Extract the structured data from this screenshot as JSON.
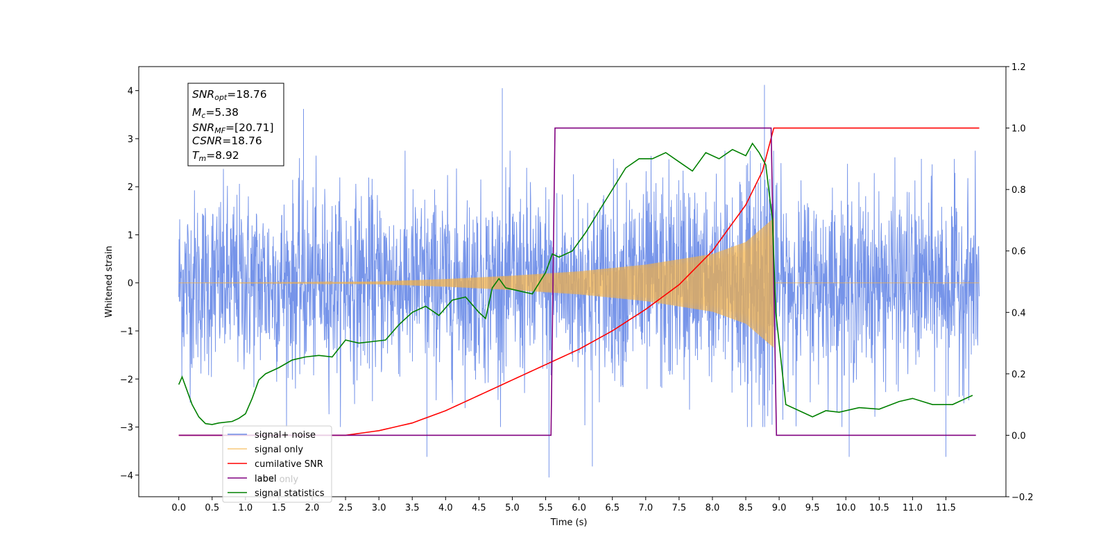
{
  "chart_data": {
    "type": "line",
    "xlabel": "Time (s)",
    "ylabel": "Whitened strain",
    "xlim": [
      -0.6,
      12.4
    ],
    "ylim_left": [
      -4.45,
      4.5
    ],
    "ylim_right": [
      -0.2,
      1.2
    ],
    "x_ticks": [
      "0.0",
      "0.5",
      "1.0",
      "1.5",
      "2.0",
      "2.5",
      "3.0",
      "3.5",
      "4.0",
      "4.5",
      "5.0",
      "5.5",
      "6.0",
      "6.5",
      "7.0",
      "7.5",
      "8.0",
      "8.5",
      "9.0",
      "9.5",
      "10.0",
      "10.5",
      "11.0",
      "11.5"
    ],
    "y_ticks_left": [
      "4",
      "3",
      "2",
      "1",
      "0",
      "−1",
      "−2",
      "−3",
      "−4"
    ],
    "y_ticks_right": [
      "1.2",
      "1.0",
      "0.8",
      "0.6",
      "0.4",
      "0.2",
      "0.0",
      "−0.2"
    ],
    "grid": false,
    "legend_position": "lower-left",
    "legend": [
      "signal+ noise",
      "signal only",
      "cumilative SNR",
      "label",
      "signal statistics"
    ],
    "legend_faint_text": "label only",
    "annotation": {
      "snr_opt_label": "SNR",
      "snr_opt_sub": "opt",
      "snr_opt_value": "=18.76",
      "mc_label": "M",
      "mc_sub": "c",
      "mc_value": "=5.38",
      "snr_mf_label": "SNR",
      "snr_mf_sub": "MF",
      "snr_mf_value": "=[20.71]",
      "csnr_label": "CSNR",
      "csnr_value": "=18.76",
      "tm_label": "T",
      "tm_sub": "m",
      "tm_value": "=8.92"
    },
    "series": [
      {
        "name": "signal+ noise",
        "axis": "left",
        "color": "#6f8ee8",
        "x_range": [
          0.0,
          12.0
        ],
        "noise_envelope": [
          -2.7,
          2.3
        ],
        "notable_peaks": [
          {
            "x": 4.85,
            "y": 4.05
          },
          {
            "x": 8.78,
            "y": 4.12
          },
          {
            "x": 1.87,
            "y": 3.62
          },
          {
            "x": 5.55,
            "y": -4.05
          },
          {
            "x": 6.2,
            "y": -3.82
          },
          {
            "x": 3.72,
            "y": -3.62
          },
          {
            "x": 11.5,
            "y": -3.62
          },
          {
            "x": 10.05,
            "y": -3.62
          }
        ]
      },
      {
        "name": "signal only",
        "axis": "left",
        "color": "#f5b041",
        "x_range": [
          0.0,
          8.92
        ],
        "envelope": [
          [
            0.0,
            0.0
          ],
          [
            2.0,
            0.01
          ],
          [
            3.0,
            0.03
          ],
          [
            4.0,
            0.08
          ],
          [
            5.0,
            0.15
          ],
          [
            6.0,
            0.24
          ],
          [
            7.0,
            0.38
          ],
          [
            8.0,
            0.6
          ],
          [
            8.5,
            0.85
          ],
          [
            8.92,
            1.35
          ]
        ]
      },
      {
        "name": "cumilative SNR",
        "axis": "right",
        "color": "#ff0000",
        "x": [
          0.0,
          2.5,
          3.0,
          3.5,
          4.0,
          4.5,
          5.0,
          5.5,
          6.0,
          6.5,
          7.0,
          7.5,
          8.0,
          8.5,
          8.75,
          8.92,
          9.0,
          12.0
        ],
        "values": [
          0.0,
          0.0,
          0.015,
          0.04,
          0.08,
          0.13,
          0.18,
          0.23,
          0.28,
          0.34,
          0.41,
          0.49,
          0.6,
          0.75,
          0.86,
          1.0,
          1.0,
          1.0
        ]
      },
      {
        "name": "label",
        "axis": "right",
        "color": "#800080",
        "x": [
          0.0,
          5.58,
          5.64,
          8.88,
          8.96,
          11.95
        ],
        "values": [
          0.0,
          0.0,
          1.0,
          1.0,
          0.0,
          0.0
        ]
      },
      {
        "name": "signal statistics",
        "axis": "right",
        "color": "#008000",
        "x": [
          0.0,
          0.05,
          0.1,
          0.2,
          0.3,
          0.4,
          0.5,
          0.6,
          0.8,
          0.9,
          1.0,
          1.1,
          1.2,
          1.3,
          1.5,
          1.7,
          1.9,
          2.1,
          2.3,
          2.5,
          2.7,
          2.9,
          3.1,
          3.3,
          3.5,
          3.7,
          3.9,
          4.1,
          4.3,
          4.5,
          4.6,
          4.7,
          4.8,
          4.9,
          5.1,
          5.3,
          5.5,
          5.6,
          5.7,
          5.9,
          6.1,
          6.3,
          6.5,
          6.7,
          6.9,
          7.1,
          7.3,
          7.5,
          7.7,
          7.9,
          8.1,
          8.3,
          8.5,
          8.6,
          8.7,
          8.8,
          8.9,
          8.95,
          9.0,
          9.1,
          9.3,
          9.5,
          9.7,
          9.9,
          10.2,
          10.5,
          10.8,
          11.0,
          11.3,
          11.6,
          11.9
        ],
        "values": [
          0.165,
          0.19,
          0.16,
          0.1,
          0.06,
          0.038,
          0.035,
          0.04,
          0.045,
          0.055,
          0.07,
          0.12,
          0.18,
          0.2,
          0.22,
          0.245,
          0.255,
          0.26,
          0.255,
          0.31,
          0.3,
          0.305,
          0.31,
          0.36,
          0.4,
          0.42,
          0.39,
          0.44,
          0.45,
          0.4,
          0.38,
          0.48,
          0.51,
          0.48,
          0.47,
          0.46,
          0.53,
          0.59,
          0.58,
          0.6,
          0.66,
          0.73,
          0.8,
          0.87,
          0.9,
          0.9,
          0.92,
          0.89,
          0.86,
          0.92,
          0.9,
          0.93,
          0.91,
          0.95,
          0.92,
          0.88,
          0.7,
          0.4,
          0.3,
          0.1,
          0.08,
          0.06,
          0.08,
          0.075,
          0.09,
          0.085,
          0.11,
          0.12,
          0.1,
          0.1,
          0.13
        ]
      }
    ]
  }
}
